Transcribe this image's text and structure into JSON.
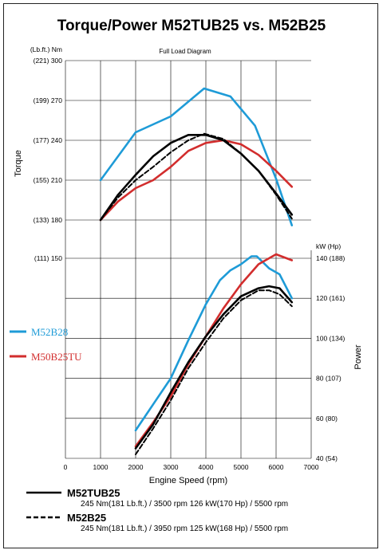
{
  "chart_data": {
    "type": "line",
    "title": "Torque/Power  M52TUB25 vs. M52B25",
    "subtitle": "Full Load Diagram",
    "xlabel": "Engine Speed (rpm)",
    "xlim": [
      0,
      7000
    ],
    "xticks": [
      "0",
      "1000",
      "2000",
      "3000",
      "4000",
      "5000",
      "6000",
      "7000"
    ],
    "torque_axis": {
      "label": "Torque",
      "unit_header": "(Lb.ft.) Nm",
      "range": [
        180,
        300
      ],
      "ticks": [
        {
          "value": 300,
          "label": "(221) 300"
        },
        {
          "value": 270,
          "label": "(199) 270"
        },
        {
          "value": 240,
          "label": "(177) 240"
        },
        {
          "value": 210,
          "label": "(155) 210"
        },
        {
          "value": 180,
          "label": "(133) 180"
        },
        {
          "value": 150,
          "label": "(111) 150"
        }
      ]
    },
    "power_axis": {
      "label": "Power",
      "unit_header": "kW  (Hp)",
      "range": [
        40,
        140
      ],
      "ticks": [
        {
          "value": 140,
          "label": "140 (188)"
        },
        {
          "value": 120,
          "label": "120 (161)"
        },
        {
          "value": 100,
          "label": "100 (134)"
        },
        {
          "value": 80,
          "label": "80 (107)"
        },
        {
          "value": 60,
          "label": "60 (80)"
        },
        {
          "value": 40,
          "label": "40 (54)"
        }
      ]
    },
    "series": [
      {
        "name": "M52B28",
        "color": "#1e9bd7",
        "dash": false,
        "torque": [
          [
            1000,
            210
          ],
          [
            2000,
            246
          ],
          [
            3000,
            258
          ],
          [
            3950,
            279
          ],
          [
            4700,
            273
          ],
          [
            5400,
            251
          ],
          [
            6000,
            211
          ],
          [
            6450,
            176
          ]
        ],
        "power": [
          [
            2000,
            54
          ],
          [
            2500,
            67
          ],
          [
            3000,
            80
          ],
          [
            3500,
            99
          ],
          [
            4000,
            117
          ],
          [
            4400,
            129
          ],
          [
            4700,
            134
          ],
          [
            5000,
            137
          ],
          [
            5300,
            141
          ],
          [
            5450,
            141
          ],
          [
            5800,
            135
          ],
          [
            6100,
            132
          ],
          [
            6450,
            120
          ]
        ]
      },
      {
        "name": "M50B25TU",
        "color": "#d22d2d",
        "dash": false,
        "torque": [
          [
            1000,
            180
          ],
          [
            1500,
            194
          ],
          [
            2000,
            204
          ],
          [
            2500,
            210
          ],
          [
            3000,
            220
          ],
          [
            3500,
            232
          ],
          [
            4000,
            238
          ],
          [
            4500,
            240
          ],
          [
            5000,
            237
          ],
          [
            5500,
            229
          ],
          [
            6000,
            217
          ],
          [
            6450,
            205
          ]
        ],
        "power": [
          [
            2000,
            46
          ],
          [
            2500,
            58
          ],
          [
            3000,
            71
          ],
          [
            3500,
            87
          ],
          [
            4000,
            101
          ],
          [
            4500,
            115
          ],
          [
            5000,
            127
          ],
          [
            5500,
            137
          ],
          [
            6000,
            142
          ],
          [
            6450,
            139
          ]
        ]
      },
      {
        "name": "M52TUB25",
        "color": "#000000",
        "dash": false,
        "torque": [
          [
            1000,
            180
          ],
          [
            1500,
            199
          ],
          [
            2000,
            214
          ],
          [
            2500,
            228
          ],
          [
            3000,
            238
          ],
          [
            3500,
            244
          ],
          [
            4000,
            244
          ],
          [
            4500,
            240
          ],
          [
            5000,
            230
          ],
          [
            5500,
            217
          ],
          [
            6000,
            200
          ],
          [
            6450,
            184
          ]
        ],
        "power": [
          [
            2000,
            45
          ],
          [
            2500,
            57
          ],
          [
            3000,
            73
          ],
          [
            3500,
            88
          ],
          [
            4000,
            101
          ],
          [
            4500,
            112
          ],
          [
            5000,
            121
          ],
          [
            5500,
            125
          ],
          [
            5800,
            126
          ],
          [
            6100,
            125
          ],
          [
            6450,
            118
          ]
        ]
      },
      {
        "name": "M52B25",
        "color": "#000000",
        "dash": true,
        "torque": [
          [
            1000,
            180
          ],
          [
            1500,
            197
          ],
          [
            2000,
            210
          ],
          [
            2500,
            220
          ],
          [
            3000,
            231
          ],
          [
            3500,
            240
          ],
          [
            3950,
            245
          ],
          [
            4500,
            241
          ],
          [
            5000,
            230
          ],
          [
            5500,
            217
          ],
          [
            6000,
            199
          ],
          [
            6450,
            181
          ]
        ],
        "power": [
          [
            2000,
            42
          ],
          [
            2500,
            55
          ],
          [
            3000,
            69
          ],
          [
            3500,
            85
          ],
          [
            4000,
            98
          ],
          [
            4500,
            110
          ],
          [
            5000,
            119
          ],
          [
            5500,
            124
          ],
          [
            5800,
            124
          ],
          [
            6100,
            122
          ],
          [
            6450,
            116
          ]
        ]
      }
    ],
    "legend_side": [
      {
        "label": "M52B28",
        "color": "#1e9bd7"
      },
      {
        "label": "M50B25TU",
        "color": "#d22d2d"
      }
    ],
    "legend_bottom": [
      {
        "label": "M52TUB25",
        "dash": false,
        "spec": "245 Nm(181 Lb.ft.) / 3500 rpm     126 kW(170 Hp) / 5500 rpm"
      },
      {
        "label": "M52B25",
        "dash": true,
        "spec": "245 Nm(181 Lb.ft.) / 3950 rpm     125 kW(168 Hp) / 5500 rpm"
      }
    ],
    "grid": true
  }
}
